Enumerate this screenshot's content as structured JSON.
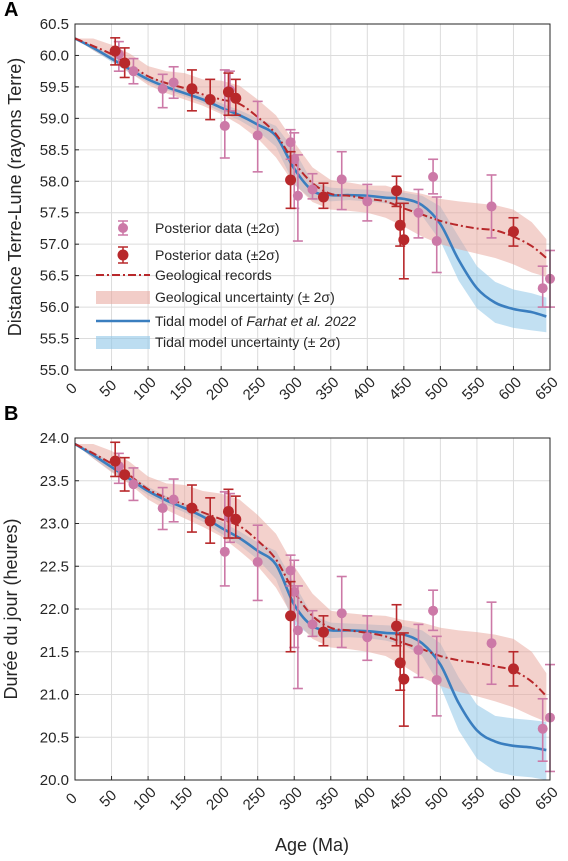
{
  "colors": {
    "posterior_light": "#cc79a7",
    "posterior_dark": "#b8282b",
    "geo_line": "#b8282b",
    "geo_band": "#e8a49a",
    "tidal_line": "#3a7ebf",
    "tidal_band": "#8fc7e8",
    "grid": "#dcdcdc",
    "axis": "#262626"
  },
  "xaxis": {
    "label": "Age (Ma)",
    "ticks": [
      "0",
      "50",
      "100",
      "150",
      "200",
      "250",
      "300",
      "350",
      "400",
      "450",
      "500",
      "550",
      "600",
      "650"
    ]
  },
  "legend": {
    "items": [
      "Posterior data (±2σ)",
      "Posterior data (±2σ)",
      "Geological records",
      "Geological uncertainty (± 2σ)",
      "Tidal model of ",
      "Farhat et al. 2022",
      "Tidal model uncertainty (± 2σ)"
    ]
  },
  "chart_data": [
    {
      "type": "line",
      "panel_label": "A",
      "ylabel": "Distance Terre-Lune (rayons Terre)",
      "xlabel": "",
      "xlim": [
        0,
        650
      ],
      "ylim": [
        55.0,
        60.5
      ],
      "y_ticks": [
        "55.0",
        "55.5",
        "56.0",
        "56.5",
        "57.0",
        "57.5",
        "58.0",
        "58.5",
        "59.0",
        "59.5",
        "60.0",
        "60.5"
      ],
      "grid": true,
      "legend_position": "left-bottom",
      "series": [
        {
          "name": "Posterior data (±2σ)",
          "style": "light-points",
          "points": [
            {
              "x": 60,
              "y": 60.02,
              "lo": 59.75,
              "hi": 60.22
            },
            {
              "x": 80,
              "y": 59.75,
              "lo": 59.55,
              "hi": 59.95
            },
            {
              "x": 120,
              "y": 59.47,
              "lo": 59.17,
              "hi": 59.7
            },
            {
              "x": 135,
              "y": 59.57,
              "lo": 59.32,
              "hi": 59.82
            },
            {
              "x": 205,
              "y": 58.88,
              "lo": 58.37,
              "hi": 59.77
            },
            {
              "x": 212,
              "y": 59.45,
              "lo": 59.12,
              "hi": 59.75
            },
            {
              "x": 250,
              "y": 58.73,
              "lo": 58.15,
              "hi": 59.27
            },
            {
              "x": 295,
              "y": 58.62,
              "lo": 58.35,
              "hi": 58.82
            },
            {
              "x": 300,
              "y": 58.35,
              "lo": 57.57,
              "hi": 58.77
            },
            {
              "x": 305,
              "y": 57.77,
              "lo": 57.05,
              "hi": 58.42
            },
            {
              "x": 325,
              "y": 57.87,
              "lo": 57.72,
              "hi": 58.12
            },
            {
              "x": 365,
              "y": 58.03,
              "lo": 57.55,
              "hi": 58.47
            },
            {
              "x": 400,
              "y": 57.68,
              "lo": 57.37,
              "hi": 57.95
            },
            {
              "x": 470,
              "y": 57.5,
              "lo": 57.1,
              "hi": 57.87
            },
            {
              "x": 490,
              "y": 58.07,
              "lo": 57.8,
              "hi": 58.35
            },
            {
              "x": 495,
              "y": 57.05,
              "lo": 56.55,
              "hi": 57.75
            },
            {
              "x": 570,
              "y": 57.6,
              "lo": 57.1,
              "hi": 58.1
            },
            {
              "x": 640,
              "y": 56.3,
              "lo": 56.0,
              "hi": 56.65
            },
            {
              "x": 650,
              "y": 56.45,
              "lo": 56.0,
              "hi": 56.9
            }
          ]
        },
        {
          "name": "Posterior data (±2σ)",
          "style": "dark-points",
          "points": [
            {
              "x": 55,
              "y": 60.07,
              "lo": 59.85,
              "hi": 60.28
            },
            {
              "x": 68,
              "y": 59.88,
              "lo": 59.65,
              "hi": 60.12
            },
            {
              "x": 160,
              "y": 59.47,
              "lo": 59.12,
              "hi": 59.77
            },
            {
              "x": 185,
              "y": 59.3,
              "lo": 58.98,
              "hi": 59.62
            },
            {
              "x": 210,
              "y": 59.42,
              "lo": 59.05,
              "hi": 59.72
            },
            {
              "x": 220,
              "y": 59.32,
              "lo": 59.05,
              "hi": 59.62
            },
            {
              "x": 295,
              "y": 58.02,
              "lo": 57.57,
              "hi": 58.47
            },
            {
              "x": 340,
              "y": 57.75,
              "lo": 57.57,
              "hi": 57.97
            },
            {
              "x": 440,
              "y": 57.85,
              "lo": 57.6,
              "hi": 58.08
            },
            {
              "x": 445,
              "y": 57.3,
              "lo": 56.97,
              "hi": 57.65
            },
            {
              "x": 450,
              "y": 57.07,
              "lo": 56.45,
              "hi": 57.65
            },
            {
              "x": 600,
              "y": 57.2,
              "lo": 56.97,
              "hi": 57.42
            }
          ]
        },
        {
          "name": "Geological records",
          "style": "dashdot",
          "x": [
            0,
            25,
            50,
            75,
            100,
            125,
            150,
            175,
            200,
            225,
            250,
            275,
            300,
            325,
            350,
            375,
            400,
            425,
            450,
            475,
            500,
            525,
            550,
            575,
            600,
            625,
            645
          ],
          "y": [
            60.27,
            60.15,
            60.02,
            59.85,
            59.67,
            59.56,
            59.48,
            59.38,
            59.3,
            59.23,
            59.02,
            58.75,
            58.3,
            57.97,
            57.8,
            57.77,
            57.72,
            57.68,
            57.57,
            57.47,
            57.37,
            57.3,
            57.25,
            57.22,
            57.12,
            56.97,
            56.78
          ],
          "band_lo": [
            60.27,
            60.08,
            59.92,
            59.73,
            59.53,
            59.4,
            59.3,
            59.2,
            59.07,
            58.9,
            58.68,
            58.38,
            57.95,
            57.67,
            57.55,
            57.53,
            57.5,
            57.42,
            57.28,
            57.12,
            57.0,
            56.92,
            56.85,
            56.78,
            56.68,
            56.55,
            56.48
          ],
          "band_hi": [
            60.27,
            60.27,
            60.17,
            60.03,
            59.83,
            59.75,
            59.72,
            59.62,
            59.6,
            59.52,
            59.3,
            59.05,
            58.62,
            58.22,
            58.02,
            57.98,
            57.93,
            57.93,
            57.85,
            57.8,
            57.72,
            57.68,
            57.65,
            57.62,
            57.55,
            57.35,
            57.08
          ]
        },
        {
          "name": "Tidal model of Farhat et al. 2022",
          "style": "solid",
          "x": [
            0,
            25,
            50,
            75,
            100,
            125,
            150,
            175,
            200,
            225,
            250,
            275,
            300,
            325,
            350,
            375,
            400,
            425,
            450,
            475,
            500,
            525,
            550,
            575,
            600,
            625,
            645
          ],
          "y": [
            60.27,
            60.12,
            59.95,
            59.78,
            59.62,
            59.5,
            59.4,
            59.3,
            59.17,
            59.05,
            58.9,
            58.72,
            58.2,
            57.85,
            57.78,
            57.78,
            57.77,
            57.74,
            57.72,
            57.62,
            57.32,
            56.75,
            56.3,
            56.07,
            55.97,
            55.92,
            55.85
          ],
          "band_lo": [
            60.27,
            60.08,
            59.9,
            59.72,
            59.57,
            59.45,
            59.35,
            59.24,
            59.1,
            58.97,
            58.8,
            58.55,
            57.95,
            57.7,
            57.68,
            57.7,
            57.68,
            57.65,
            57.6,
            57.45,
            57.05,
            56.42,
            55.98,
            55.75,
            55.67,
            55.63,
            55.6
          ],
          "band_hi": [
            60.27,
            60.15,
            60.0,
            59.83,
            59.68,
            59.56,
            59.46,
            59.36,
            59.24,
            59.13,
            59.0,
            58.88,
            58.5,
            57.98,
            57.9,
            57.88,
            57.87,
            57.84,
            57.82,
            57.77,
            57.6,
            57.12,
            56.65,
            56.4,
            56.28,
            56.22,
            56.15
          ]
        }
      ]
    },
    {
      "type": "line",
      "panel_label": "B",
      "ylabel": "Durée du jour (heures)",
      "xlabel": "Age (Ma)",
      "xlim": [
        0,
        650
      ],
      "ylim": [
        20.0,
        24.0
      ],
      "y_ticks": [
        "20.0",
        "20.5",
        "21.0",
        "21.5",
        "22.0",
        "22.5",
        "23.0",
        "23.5",
        "24.0"
      ],
      "grid": true,
      "series": [
        {
          "name": "Posterior data (±2σ)",
          "style": "light-points",
          "points": [
            {
              "x": 60,
              "y": 23.67,
              "lo": 23.47,
              "hi": 23.82
            },
            {
              "x": 80,
              "y": 23.46,
              "lo": 23.27,
              "hi": 23.65
            },
            {
              "x": 120,
              "y": 23.18,
              "lo": 22.93,
              "hi": 23.42
            },
            {
              "x": 135,
              "y": 23.28,
              "lo": 23.02,
              "hi": 23.52
            },
            {
              "x": 205,
              "y": 22.67,
              "lo": 22.27,
              "hi": 23.37
            },
            {
              "x": 212,
              "y": 23.07,
              "lo": 22.78,
              "hi": 23.35
            },
            {
              "x": 250,
              "y": 22.55,
              "lo": 22.1,
              "hi": 22.98
            },
            {
              "x": 295,
              "y": 22.45,
              "lo": 22.27,
              "hi": 22.63
            },
            {
              "x": 300,
              "y": 22.2,
              "lo": 21.55,
              "hi": 22.57
            },
            {
              "x": 305,
              "y": 21.75,
              "lo": 21.07,
              "hi": 22.27
            },
            {
              "x": 325,
              "y": 21.82,
              "lo": 21.68,
              "hi": 21.98
            },
            {
              "x": 365,
              "y": 21.95,
              "lo": 21.55,
              "hi": 22.38
            },
            {
              "x": 400,
              "y": 21.67,
              "lo": 21.4,
              "hi": 21.92
            },
            {
              "x": 470,
              "y": 21.52,
              "lo": 21.2,
              "hi": 21.82
            },
            {
              "x": 490,
              "y": 21.98,
              "lo": 21.75,
              "hi": 22.22
            },
            {
              "x": 495,
              "y": 21.17,
              "lo": 20.75,
              "hi": 21.68
            },
            {
              "x": 570,
              "y": 21.6,
              "lo": 21.12,
              "hi": 22.08
            },
            {
              "x": 640,
              "y": 20.6,
              "lo": 20.22,
              "hi": 20.95
            },
            {
              "x": 650,
              "y": 20.73,
              "lo": 20.1,
              "hi": 21.35
            }
          ]
        },
        {
          "name": "Posterior data (±2σ)",
          "style": "dark-points",
          "points": [
            {
              "x": 55,
              "y": 23.73,
              "lo": 23.55,
              "hi": 23.95
            },
            {
              "x": 68,
              "y": 23.57,
              "lo": 23.38,
              "hi": 23.77
            },
            {
              "x": 160,
              "y": 23.18,
              "lo": 22.9,
              "hi": 23.45
            },
            {
              "x": 185,
              "y": 23.03,
              "lo": 22.77,
              "hi": 23.3
            },
            {
              "x": 210,
              "y": 23.14,
              "lo": 22.83,
              "hi": 23.4
            },
            {
              "x": 220,
              "y": 23.05,
              "lo": 22.83,
              "hi": 23.32
            },
            {
              "x": 295,
              "y": 21.92,
              "lo": 21.5,
              "hi": 22.32
            },
            {
              "x": 340,
              "y": 21.73,
              "lo": 21.57,
              "hi": 21.92
            },
            {
              "x": 440,
              "y": 21.8,
              "lo": 21.57,
              "hi": 22.05
            },
            {
              "x": 445,
              "y": 21.37,
              "lo": 21.05,
              "hi": 21.7
            },
            {
              "x": 450,
              "y": 21.18,
              "lo": 20.63,
              "hi": 21.72
            },
            {
              "x": 600,
              "y": 21.3,
              "lo": 21.1,
              "hi": 21.5
            }
          ]
        },
        {
          "name": "Geological records",
          "style": "dashdot",
          "x": [
            0,
            25,
            50,
            75,
            100,
            125,
            150,
            175,
            200,
            225,
            250,
            275,
            300,
            325,
            350,
            375,
            400,
            425,
            450,
            475,
            500,
            525,
            550,
            575,
            600,
            625,
            645
          ],
          "y": [
            23.93,
            23.82,
            23.7,
            23.56,
            23.4,
            23.3,
            23.22,
            23.13,
            23.05,
            22.97,
            22.8,
            22.58,
            22.2,
            21.92,
            21.78,
            21.75,
            21.72,
            21.68,
            21.6,
            21.53,
            21.45,
            21.4,
            21.37,
            21.33,
            21.28,
            21.15,
            20.98
          ],
          "band_lo": [
            23.93,
            23.76,
            23.6,
            23.46,
            23.28,
            23.16,
            23.06,
            22.96,
            22.85,
            22.68,
            22.5,
            22.25,
            21.88,
            21.65,
            21.55,
            21.53,
            21.5,
            21.45,
            21.33,
            21.2,
            21.1,
            21.03,
            20.98,
            20.92,
            20.85,
            20.75,
            20.68
          ],
          "band_hi": [
            23.93,
            23.93,
            23.85,
            23.72,
            23.55,
            23.47,
            23.45,
            23.38,
            23.35,
            23.28,
            23.1,
            22.88,
            22.5,
            22.18,
            21.98,
            21.95,
            21.93,
            21.92,
            21.87,
            21.84,
            21.78,
            21.75,
            21.73,
            21.7,
            21.65,
            21.5,
            21.25
          ]
        },
        {
          "name": "Tidal model of Farhat et al. 2022",
          "style": "solid",
          "x": [
            0,
            25,
            50,
            75,
            100,
            125,
            150,
            175,
            200,
            225,
            250,
            275,
            300,
            325,
            350,
            375,
            400,
            425,
            450,
            475,
            500,
            525,
            550,
            575,
            600,
            625,
            645
          ],
          "y": [
            23.93,
            23.8,
            23.66,
            23.52,
            23.38,
            23.27,
            23.18,
            23.08,
            22.95,
            22.83,
            22.68,
            22.52,
            22.05,
            21.8,
            21.75,
            21.75,
            21.74,
            21.72,
            21.7,
            21.6,
            21.35,
            20.9,
            20.58,
            20.45,
            20.4,
            20.38,
            20.35
          ],
          "band_lo": [
            23.93,
            23.76,
            23.61,
            23.47,
            23.33,
            23.22,
            23.13,
            23.02,
            22.88,
            22.75,
            22.58,
            22.35,
            21.82,
            21.68,
            21.66,
            21.67,
            21.66,
            21.63,
            21.58,
            21.45,
            21.1,
            20.58,
            20.25,
            20.1,
            20.05,
            20.03,
            20.0
          ],
          "band_hi": [
            23.93,
            23.84,
            23.71,
            23.57,
            23.43,
            23.32,
            23.23,
            23.14,
            23.02,
            22.91,
            22.78,
            22.68,
            22.3,
            21.92,
            21.84,
            21.83,
            21.82,
            21.81,
            21.8,
            21.75,
            21.6,
            21.2,
            20.88,
            20.75,
            20.72,
            20.7,
            20.68
          ]
        }
      ]
    }
  ]
}
